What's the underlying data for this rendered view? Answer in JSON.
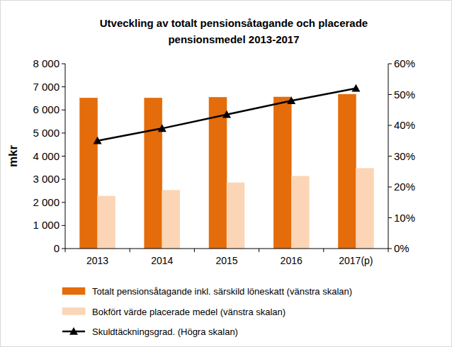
{
  "chart_data": {
    "type": "bar",
    "title": "Utveckling av totalt pensionsåtagande och placerade pensionsmedel 2013-2017",
    "y_label": "mkr",
    "categories": [
      "2013",
      "2014",
      "2015",
      "2016",
      "2017(p)"
    ],
    "series": [
      {
        "name": "Totalt pensionsåtagande inkl. särskild löneskatt (vänstra skalan)",
        "type": "bar",
        "color": "#e46c0a",
        "values": [
          6520,
          6520,
          6550,
          6560,
          6680
        ]
      },
      {
        "name": "Bokfört värde placerade medel (vänstra skalan)",
        "type": "bar",
        "color": "#fbd5b5",
        "values": [
          2270,
          2520,
          2850,
          3130,
          3470
        ]
      },
      {
        "name": "Skuldtäckningsgrad. (Högra skalan)",
        "type": "line",
        "axis": "y2",
        "color": "#000000",
        "marker": "triangle",
        "line_style": "solid",
        "values": [
          35,
          39,
          43.5,
          48,
          52
        ]
      }
    ],
    "ylim": [
      0,
      8000
    ],
    "yticks": [
      0,
      {
        "value": 1000,
        "label": "1 000"
      },
      {
        "value": 2000,
        "label": "2 000"
      },
      {
        "value": 3000,
        "label": "3 000"
      },
      {
        "value": 4000,
        "label": "4 000"
      },
      {
        "value": 5000,
        "label": "5 000"
      },
      {
        "value": 6000,
        "label": "6 000"
      },
      {
        "value": 7000,
        "label": "7 000"
      },
      {
        "value": 8000,
        "label": "8 000"
      }
    ],
    "y2lim": [
      0,
      60
    ],
    "y2ticks": [
      {
        "value": 0,
        "label": "0%"
      },
      {
        "value": 10,
        "label": "10%"
      },
      {
        "value": 20,
        "label": "20%"
      },
      {
        "value": 30,
        "label": "30%"
      },
      {
        "value": 40,
        "label": "40%"
      },
      {
        "value": 50,
        "label": "50%"
      },
      {
        "value": 60,
        "label": "60%"
      }
    ],
    "grid": false,
    "legend": "bottom"
  }
}
